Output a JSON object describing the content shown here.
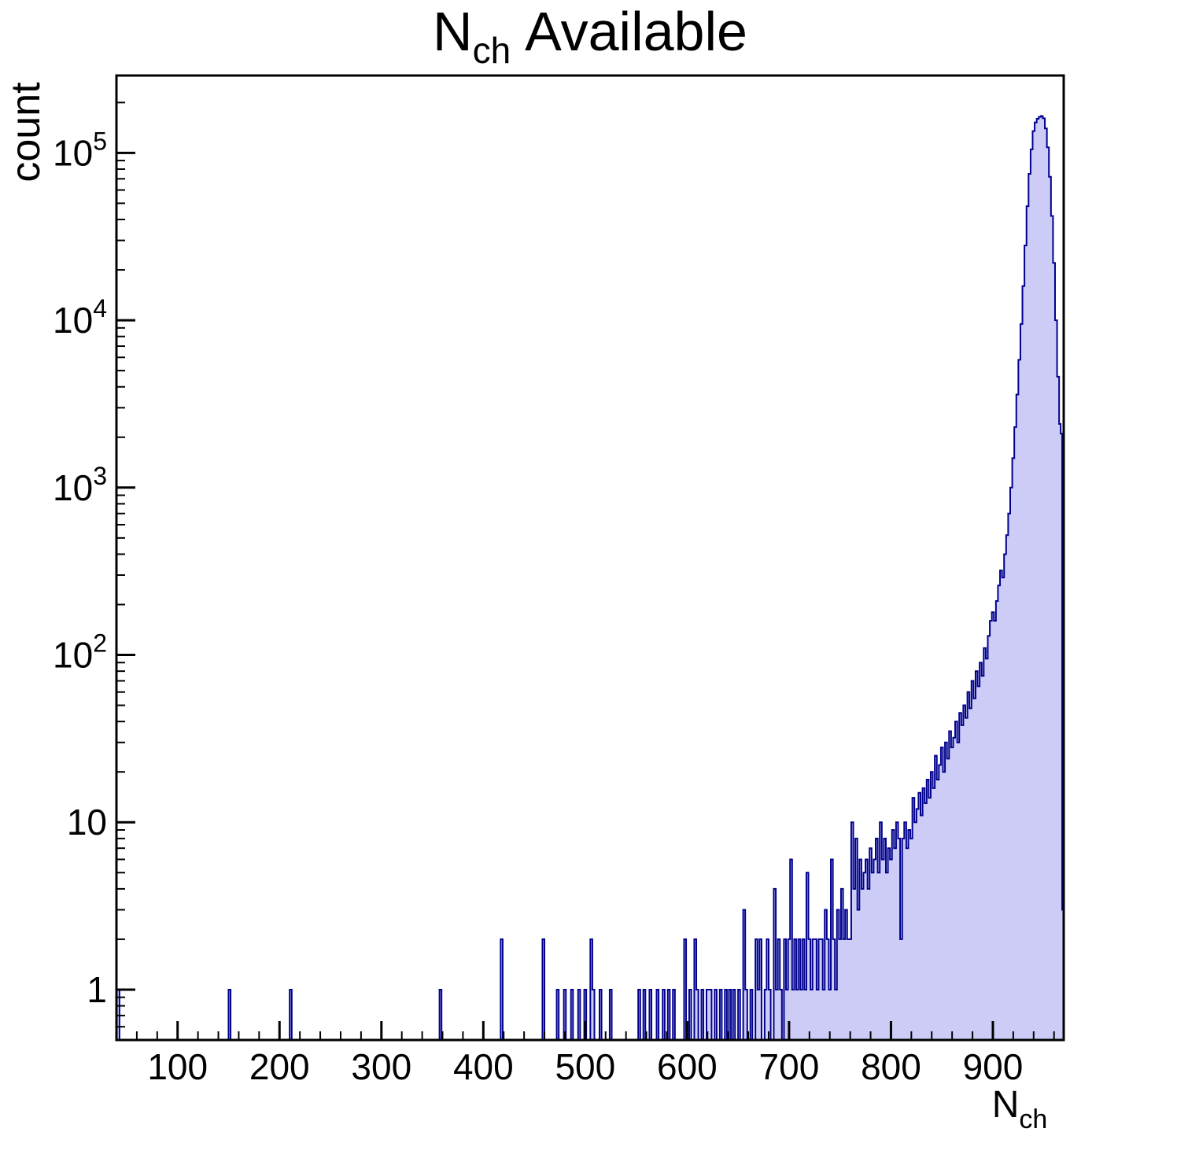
{
  "chart_data": {
    "type": "bar",
    "subtype": "histogram-log-y",
    "title": {
      "base": "N",
      "subscript": "ch",
      "rest": "Available"
    },
    "xlabel": {
      "base": "N",
      "subscript": "ch"
    },
    "ylabel": "count",
    "x_range": [
      40,
      969.5
    ],
    "y_range_log": [
      0.5,
      290000
    ],
    "x_major_ticks": [
      100,
      200,
      300,
      400,
      500,
      600,
      700,
      800,
      900
    ],
    "x_minor_tick_step": 20,
    "y_major_ticks": [
      1,
      10,
      100,
      1000,
      10000,
      100000
    ],
    "grid": false,
    "legend": false,
    "colors": {
      "fill": "#ccccf7",
      "line": "#00008c",
      "axis": "#000000",
      "background": "#ffffff"
    },
    "peak": {
      "x": 947,
      "count": 166000
    },
    "points": [
      [
        40,
        1
      ],
      [
        43,
        0
      ],
      [
        150,
        1
      ],
      [
        152,
        0
      ],
      [
        210,
        1
      ],
      [
        212,
        0
      ],
      [
        357,
        1
      ],
      [
        359,
        0
      ],
      [
        417,
        2
      ],
      [
        419,
        0
      ],
      [
        458,
        2
      ],
      [
        460,
        0
      ],
      [
        472,
        1
      ],
      [
        474,
        0
      ],
      [
        479,
        1
      ],
      [
        481,
        0
      ],
      [
        486,
        1
      ],
      [
        488,
        0
      ],
      [
        493,
        1
      ],
      [
        495,
        0
      ],
      [
        499,
        1
      ],
      [
        501,
        0
      ],
      [
        505,
        2
      ],
      [
        507,
        1
      ],
      [
        509,
        0
      ],
      [
        514,
        1
      ],
      [
        516,
        0
      ],
      [
        524,
        1
      ],
      [
        526,
        0
      ],
      [
        552,
        1
      ],
      [
        554,
        0
      ],
      [
        557,
        1
      ],
      [
        559,
        0
      ],
      [
        563,
        1
      ],
      [
        565,
        0
      ],
      [
        570,
        1
      ],
      [
        572,
        0
      ],
      [
        576,
        1
      ],
      [
        578,
        0
      ],
      [
        581,
        1
      ],
      [
        583,
        0
      ],
      [
        586,
        1
      ],
      [
        588,
        0
      ],
      [
        597,
        2
      ],
      [
        599,
        0
      ],
      [
        602,
        1
      ],
      [
        604,
        0
      ],
      [
        607,
        2
      ],
      [
        609,
        1
      ],
      [
        611,
        0
      ],
      [
        614,
        1
      ],
      [
        616,
        0
      ],
      [
        619,
        1
      ],
      [
        622,
        1
      ],
      [
        624,
        0
      ],
      [
        627,
        1
      ],
      [
        629,
        0
      ],
      [
        632,
        1
      ],
      [
        634,
        0
      ],
      [
        637,
        1
      ],
      [
        639,
        0
      ],
      [
        641,
        1
      ],
      [
        643,
        0
      ],
      [
        645,
        1
      ],
      [
        647,
        0
      ],
      [
        650,
        1
      ],
      [
        652,
        0
      ],
      [
        655,
        3
      ],
      [
        657,
        1
      ],
      [
        659,
        0
      ],
      [
        662,
        1
      ],
      [
        664,
        0
      ],
      [
        667,
        2
      ],
      [
        669,
        1
      ],
      [
        671,
        2
      ],
      [
        673,
        0
      ],
      [
        676,
        1
      ],
      [
        678,
        2
      ],
      [
        680,
        1
      ],
      [
        682,
        0
      ],
      [
        685,
        4
      ],
      [
        687,
        1
      ],
      [
        689,
        2
      ],
      [
        691,
        1
      ],
      [
        693,
        0
      ],
      [
        695,
        2
      ],
      [
        697,
        1
      ],
      [
        699,
        2
      ],
      [
        701,
        6
      ],
      [
        703,
        1
      ],
      [
        705,
        2
      ],
      [
        707,
        1
      ],
      [
        709,
        2
      ],
      [
        711,
        1
      ],
      [
        713,
        2
      ],
      [
        715,
        1
      ],
      [
        717,
        5
      ],
      [
        719,
        2
      ],
      [
        721,
        1
      ],
      [
        723,
        2
      ],
      [
        725,
        2
      ],
      [
        727,
        1
      ],
      [
        729,
        2
      ],
      [
        731,
        2
      ],
      [
        733,
        1
      ],
      [
        735,
        3
      ],
      [
        737,
        2
      ],
      [
        739,
        1
      ],
      [
        741,
        6
      ],
      [
        743,
        2
      ],
      [
        745,
        1
      ],
      [
        747,
        3
      ],
      [
        749,
        2
      ],
      [
        751,
        4
      ],
      [
        753,
        2
      ],
      [
        755,
        3
      ],
      [
        757,
        2
      ],
      [
        759,
        2
      ],
      [
        761,
        10
      ],
      [
        763,
        4
      ],
      [
        765,
        8
      ],
      [
        767,
        3
      ],
      [
        769,
        6
      ],
      [
        771,
        4
      ],
      [
        773,
        5
      ],
      [
        775,
        6
      ],
      [
        777,
        4
      ],
      [
        779,
        7
      ],
      [
        781,
        5
      ],
      [
        783,
        6
      ],
      [
        785,
        8
      ],
      [
        787,
        5
      ],
      [
        789,
        10
      ],
      [
        791,
        6
      ],
      [
        793,
        8
      ],
      [
        795,
        5
      ],
      [
        797,
        7
      ],
      [
        799,
        6
      ],
      [
        801,
        9
      ],
      [
        803,
        7
      ],
      [
        805,
        10
      ],
      [
        807,
        8
      ],
      [
        809,
        2
      ],
      [
        811,
        8
      ],
      [
        813,
        10
      ],
      [
        815,
        7
      ],
      [
        817,
        9
      ],
      [
        819,
        8
      ],
      [
        821,
        14
      ],
      [
        823,
        10
      ],
      [
        825,
        12
      ],
      [
        827,
        15
      ],
      [
        829,
        11
      ],
      [
        831,
        16
      ],
      [
        833,
        13
      ],
      [
        835,
        18
      ],
      [
        837,
        14
      ],
      [
        839,
        20
      ],
      [
        841,
        16
      ],
      [
        843,
        25
      ],
      [
        845,
        18
      ],
      [
        847,
        22
      ],
      [
        849,
        28
      ],
      [
        851,
        20
      ],
      [
        853,
        30
      ],
      [
        855,
        24
      ],
      [
        857,
        35
      ],
      [
        859,
        28
      ],
      [
        861,
        32
      ],
      [
        863,
        40
      ],
      [
        865,
        30
      ],
      [
        867,
        45
      ],
      [
        869,
        38
      ],
      [
        871,
        50
      ],
      [
        873,
        42
      ],
      [
        875,
        60
      ],
      [
        877,
        48
      ],
      [
        879,
        70
      ],
      [
        881,
        55
      ],
      [
        883,
        80
      ],
      [
        885,
        65
      ],
      [
        887,
        90
      ],
      [
        889,
        75
      ],
      [
        891,
        110
      ],
      [
        893,
        95
      ],
      [
        895,
        130
      ],
      [
        897,
        160
      ],
      [
        899,
        180
      ],
      [
        901,
        160
      ],
      [
        903,
        210
      ],
      [
        905,
        260
      ],
      [
        907,
        320
      ],
      [
        909,
        290
      ],
      [
        911,
        400
      ],
      [
        913,
        520
      ],
      [
        915,
        700
      ],
      [
        917,
        1000
      ],
      [
        919,
        1500
      ],
      [
        921,
        2300
      ],
      [
        923,
        3600
      ],
      [
        925,
        5800
      ],
      [
        927,
        9500
      ],
      [
        929,
        16000
      ],
      [
        931,
        28000
      ],
      [
        933,
        48000
      ],
      [
        935,
        75000
      ],
      [
        937,
        105000
      ],
      [
        939,
        135000
      ],
      [
        941,
        152000
      ],
      [
        943,
        160000
      ],
      [
        945,
        164000
      ],
      [
        947,
        166000
      ],
      [
        949,
        161000
      ],
      [
        951,
        140000
      ],
      [
        953,
        108000
      ],
      [
        955,
        72000
      ],
      [
        957,
        42000
      ],
      [
        959,
        22000
      ],
      [
        961,
        10000
      ],
      [
        963,
        4600
      ],
      [
        965,
        2400
      ],
      [
        966.5,
        2100
      ],
      [
        968,
        3
      ],
      [
        969.5,
        0
      ]
    ]
  }
}
